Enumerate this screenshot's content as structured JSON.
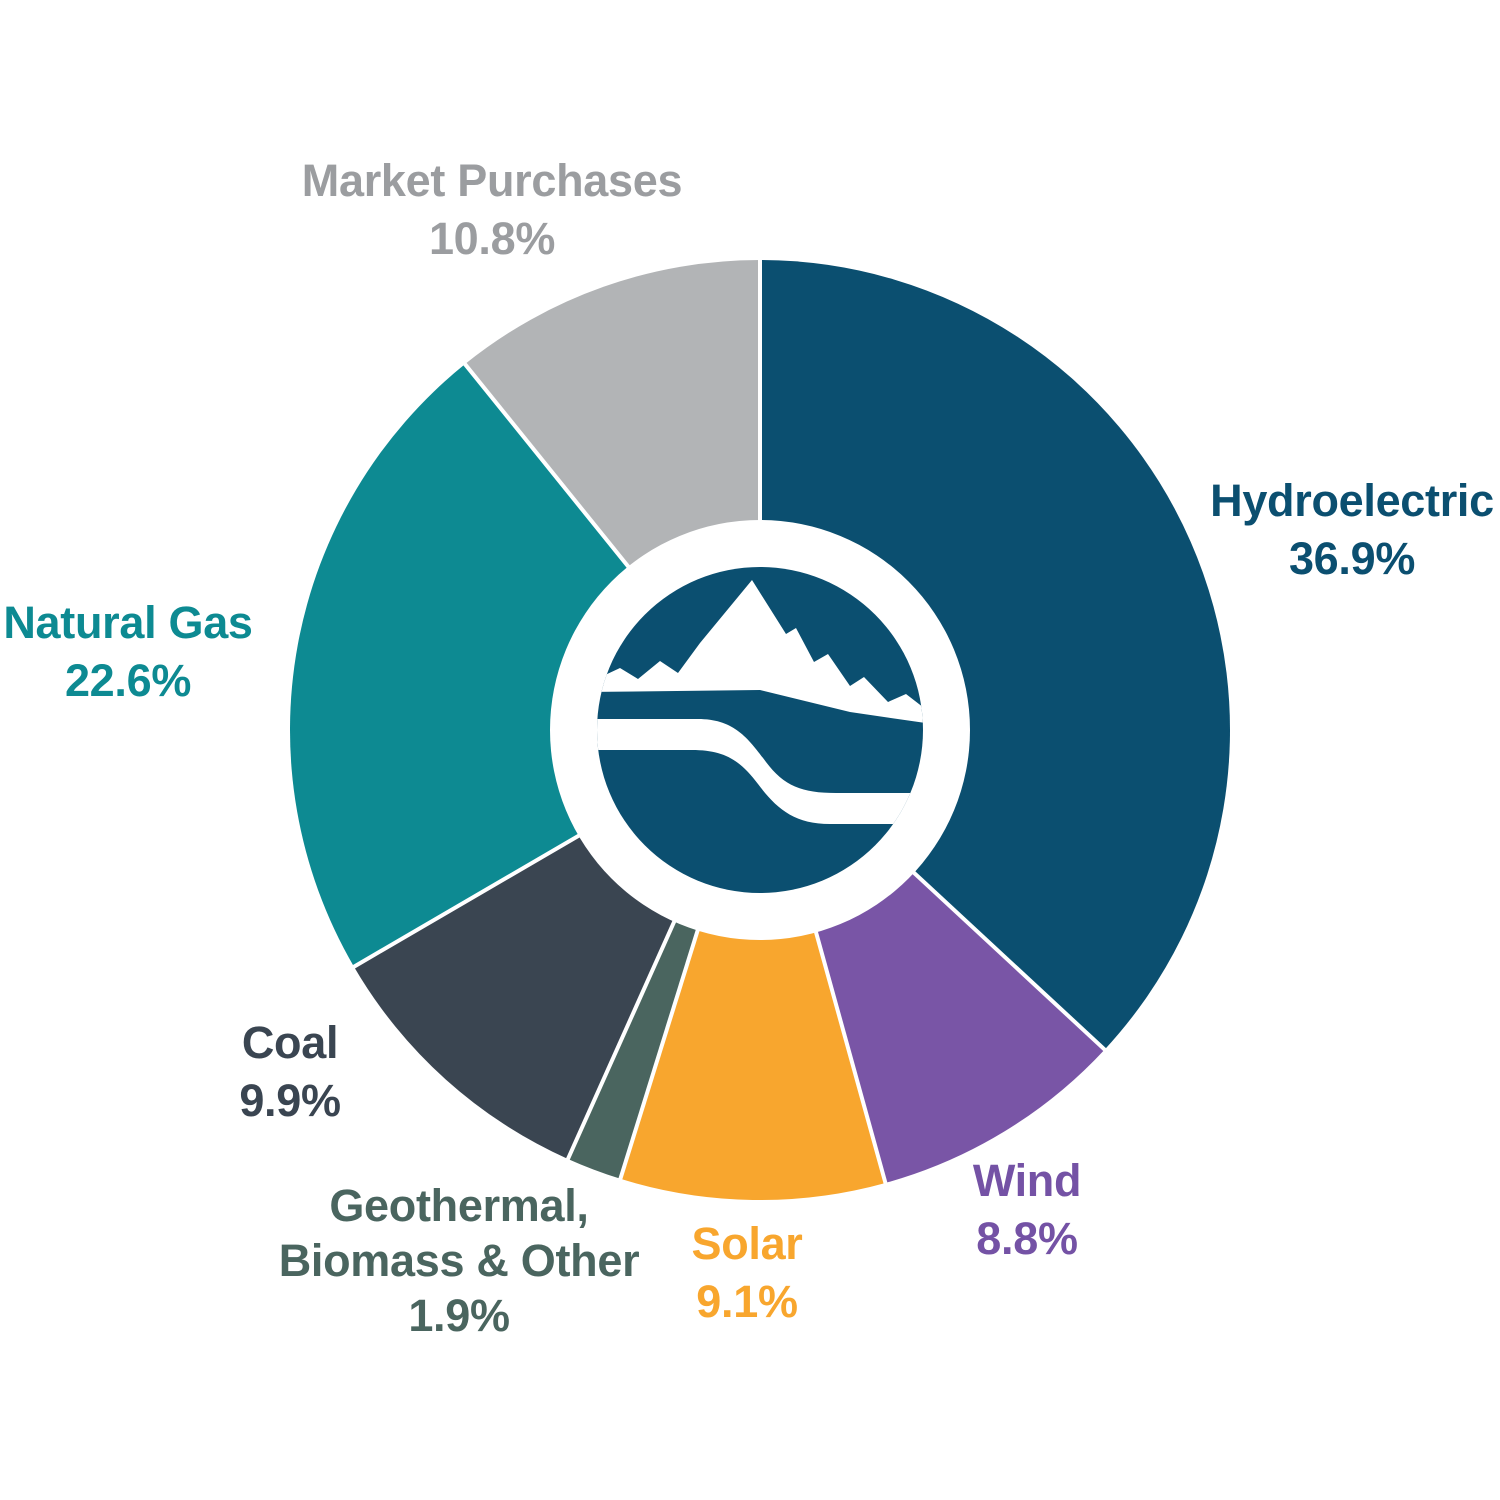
{
  "background": "#ffffff",
  "chart_data": {
    "type": "pie",
    "subtype": "donut",
    "start_angle_deg": 0,
    "direction": "clockwise",
    "segments": [
      {
        "label": "Hydroelectric",
        "value": 36.9,
        "pct_text": "36.9%",
        "color": "#0b4f70",
        "label_color": "#0b4f70"
      },
      {
        "label": "Wind",
        "value": 8.8,
        "pct_text": "8.8%",
        "color": "#7955a6",
        "label_color": "#7452a5"
      },
      {
        "label": "Solar",
        "value": 9.1,
        "pct_text": "9.1%",
        "color": "#f8a62e",
        "label_color": "#f8a62e"
      },
      {
        "label": "Geothermal, Biomass & Other",
        "value": 1.9,
        "pct_text": "1.9%",
        "color": "#4a655f",
        "label_color": "#4a655f"
      },
      {
        "label": "Coal",
        "value": 9.9,
        "pct_text": "9.9%",
        "color": "#3a4551",
        "label_color": "#3a4551"
      },
      {
        "label": "Natural Gas",
        "value": 22.6,
        "pct_text": "22.6%",
        "color": "#0d8a92",
        "label_color": "#0d8a92"
      },
      {
        "label": "Market Purchases",
        "value": 10.8,
        "pct_text": "10.8%",
        "color": "#b2b4b6",
        "label_color": "#9b9da0"
      }
    ],
    "legend_position": "around-pie",
    "gap_color": "#ffffff",
    "center_logo": {
      "name": "mountain-river-logo",
      "bg_color": "#0b4f70",
      "fg_color": "#ffffff"
    }
  }
}
